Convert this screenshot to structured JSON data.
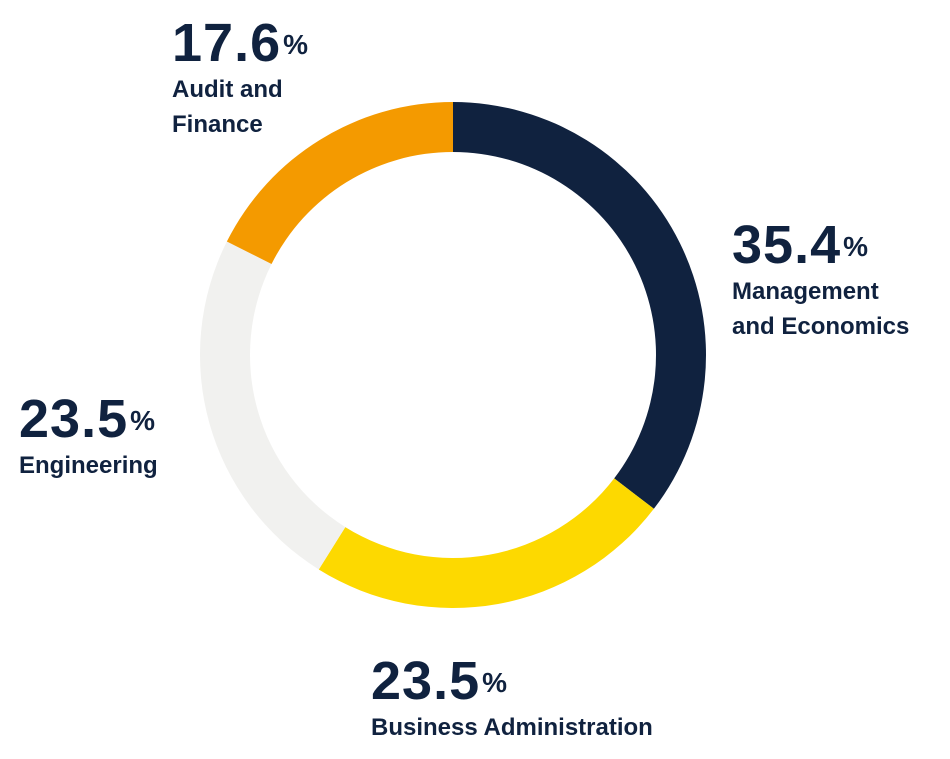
{
  "chart_data": {
    "type": "pie",
    "donut": true,
    "title": "",
    "unit": "%",
    "colors": {
      "text": "#10223f",
      "management": "#10223f",
      "business": "#fdd900",
      "engineering": "#f1f1ef",
      "audit": "#f49a00"
    },
    "slices": [
      {
        "key": "management",
        "value": 35.4,
        "value_label": "35.4",
        "label_lines": [
          "Management",
          "and Economics"
        ],
        "color": "#10223f"
      },
      {
        "key": "business",
        "value": 23.5,
        "value_label": "23.5",
        "label_lines": [
          "Business Administration"
        ],
        "color": "#fdd900"
      },
      {
        "key": "engineering",
        "value": 23.5,
        "value_label": "23.5",
        "label_lines": [
          "Engineering"
        ],
        "color": "#f1f1ef"
      },
      {
        "key": "audit",
        "value": 17.6,
        "value_label": "17.6",
        "label_lines": [
          "Audit and",
          "Finance"
        ],
        "color": "#f49a00"
      }
    ]
  }
}
